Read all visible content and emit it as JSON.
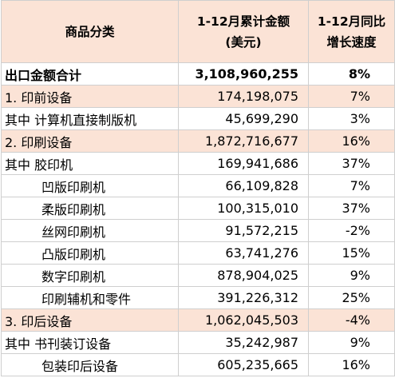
{
  "table": {
    "columns": [
      [
        "商品分类"
      ],
      [
        "1-12月累计金额",
        "(美元)"
      ],
      [
        "1-12月同比",
        "增长速度"
      ]
    ],
    "rows": [
      [
        "出口金额合计",
        "3,108,960,255",
        "8%"
      ],
      [
        "1. 印前设备",
        "174,198,075",
        "7%"
      ],
      [
        "其中 计算机直接制版机",
        "45,699,290",
        "3%"
      ],
      [
        "2. 印刷设备",
        "1,872,716,677",
        "16%"
      ],
      [
        "其中 胶印机",
        "169,941,686",
        "37%"
      ],
      [
        "凹版印刷机",
        "66,109,828",
        "7%"
      ],
      [
        "柔版印刷机",
        "100,315,010",
        "37%"
      ],
      [
        "丝网印刷机",
        "91,572,215",
        "-2%"
      ],
      [
        "凸版印刷机",
        "63,741,276",
        "15%"
      ],
      [
        "数字印刷机",
        "878,904,025",
        "9%"
      ],
      [
        "印刷辅机和零件",
        "391,226,312",
        "25%"
      ],
      [
        "3. 印后设备",
        "1,062,045,503",
        "-4%"
      ],
      [
        "其中 书刊装订设备",
        "35,242,987",
        "9%"
      ],
      [
        "包装印后设备",
        "605,235,665",
        "16%"
      ]
    ]
  }
}
